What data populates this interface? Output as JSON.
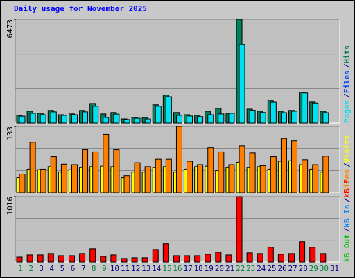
{
  "title": "Daily usage for November 2025",
  "separator": "/",
  "categories": [
    "1",
    "2",
    "3",
    "4",
    "5",
    "6",
    "7",
    "8",
    "9",
    "10",
    "11",
    "12",
    "13",
    "14",
    "15",
    "16",
    "17",
    "18",
    "19",
    "20",
    "21",
    "22",
    "23",
    "24",
    "25",
    "26",
    "27",
    "28",
    "29",
    "30",
    "31"
  ],
  "category_colors": [
    "#008040",
    "#008040",
    "#000080",
    "#000080",
    "#000080",
    "#000080",
    "#000080",
    "#008040",
    "#008040",
    "#000080",
    "#000080",
    "#000080",
    "#000080",
    "#000080",
    "#008040",
    "#008040",
    "#000080",
    "#000080",
    "#000080",
    "#000080",
    "#000080",
    "#008040",
    "#008040",
    "#000080",
    "#000080",
    "#000080",
    "#000080",
    "#000080",
    "#008040",
    "#008040",
    "#000080"
  ],
  "chart_data": [
    {
      "type": "bar",
      "ylim": [
        0,
        6473
      ],
      "yticks": [
        6473
      ],
      "series": [
        {
          "name": "Hits",
          "color": "#00805c",
          "values": [
            480,
            740,
            610,
            790,
            520,
            570,
            790,
            1220,
            570,
            660,
            260,
            350,
            350,
            1140,
            1750,
            660,
            520,
            480,
            740,
            920,
            610,
            6473,
            870,
            740,
            1400,
            740,
            790,
            1920,
            1310,
            740,
            null
          ]
        },
        {
          "name": "Files",
          "color": "#0040ff",
          "values": [
            null,
            null,
            null,
            null,
            null,
            null,
            null,
            null,
            null,
            null,
            null,
            null,
            null,
            null,
            null,
            null,
            null,
            null,
            null,
            null,
            null,
            null,
            null,
            null,
            null,
            null,
            null,
            null,
            null,
            null,
            null
          ]
        },
        {
          "name": "Pages",
          "color": "#00e0f0",
          "values": [
            430,
            610,
            520,
            700,
            480,
            520,
            700,
            1050,
            350,
            560,
            220,
            300,
            260,
            1050,
            1650,
            480,
            440,
            400,
            520,
            570,
            610,
            4900,
            800,
            660,
            1300,
            650,
            740,
            1880,
            1250,
            650,
            null
          ]
        }
      ]
    },
    {
      "type": "bar",
      "ylim": [
        0,
        133
      ],
      "yticks": [
        133
      ],
      "series": [
        {
          "name": "Visits",
          "color": "#ffff00",
          "values": [
            30,
            47,
            46,
            52,
            41,
            46,
            50,
            52,
            53,
            52,
            30,
            41,
            41,
            50,
            52,
            41,
            47,
            52,
            53,
            44,
            50,
            61,
            50,
            52,
            47,
            63,
            64,
            56,
            47,
            41,
            null
          ]
        },
        {
          "name": "Sites",
          "color": "#ff8000",
          "values": [
            37,
            101,
            47,
            72,
            57,
            56,
            86,
            82,
            117,
            86,
            34,
            60,
            52,
            67,
            67,
            133,
            63,
            56,
            90,
            82,
            56,
            94,
            80,
            54,
            72,
            109,
            104,
            66,
            56,
            73,
            null
          ]
        }
      ]
    },
    {
      "type": "bar",
      "ylim": [
        0,
        1016
      ],
      "yticks": [
        1016
      ],
      "series": [
        {
          "name": "kB F",
          "color": "#ff0000",
          "values": [
            76,
            109,
            109,
            131,
            98,
            98,
            131,
            207,
            87,
            109,
            55,
            66,
            66,
            196,
            284,
            98,
            98,
            98,
            120,
            153,
            109,
            1016,
            142,
            131,
            229,
            120,
            131,
            316,
            229,
            131,
            null
          ]
        },
        {
          "name": "kB In",
          "color": "#0080ff",
          "values": [
            null,
            null,
            null,
            null,
            null,
            null,
            null,
            null,
            null,
            null,
            null,
            null,
            null,
            null,
            null,
            null,
            null,
            null,
            null,
            null,
            null,
            null,
            null,
            null,
            null,
            null,
            null,
            null,
            null,
            null,
            null
          ]
        },
        {
          "name": "kB Out",
          "color": "#00c000",
          "values": [
            null,
            null,
            null,
            null,
            null,
            null,
            null,
            null,
            null,
            null,
            null,
            null,
            null,
            null,
            null,
            null,
            null,
            null,
            null,
            null,
            null,
            null,
            null,
            null,
            null,
            null,
            null,
            null,
            null,
            null,
            null
          ]
        }
      ]
    }
  ]
}
